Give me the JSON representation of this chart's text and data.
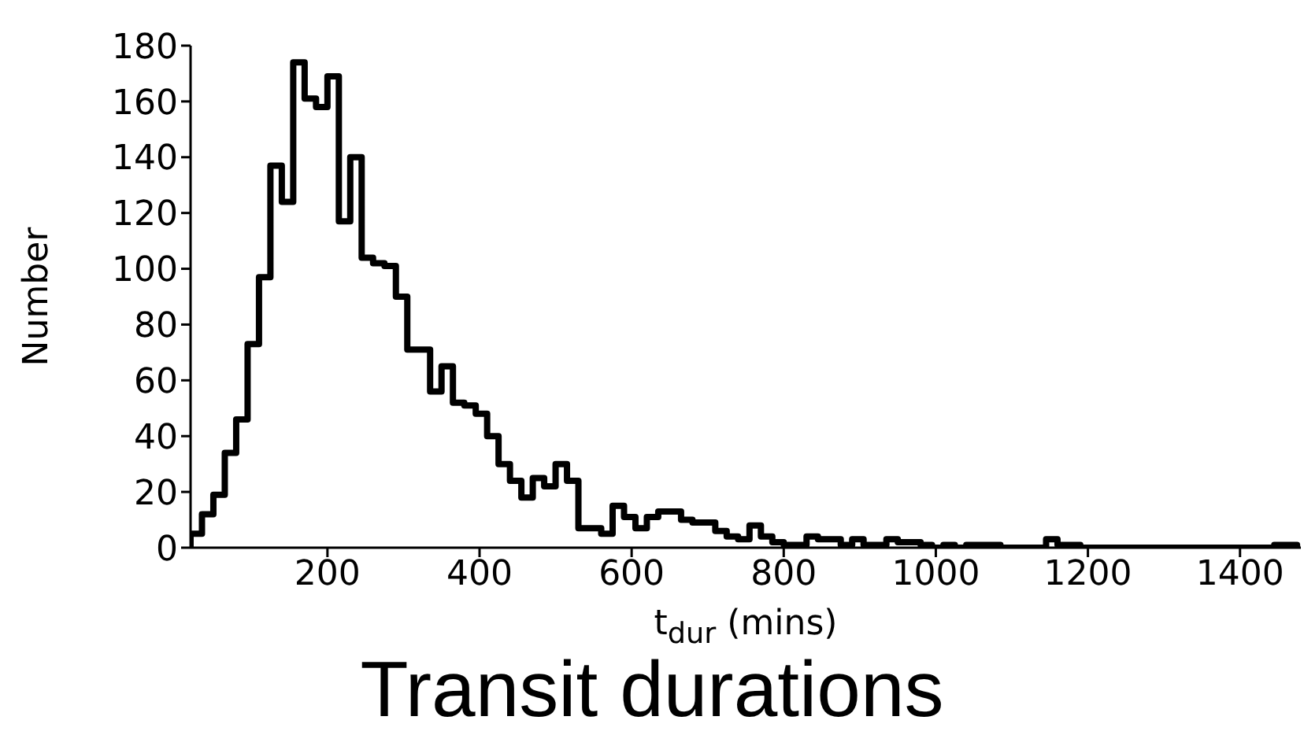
{
  "chart_data": {
    "type": "histogram",
    "title": "Transit durations",
    "xlabel": "t$_{dur}$ (mins)",
    "ylabel": "Number",
    "bins": [
      20,
      35,
      50,
      65,
      80,
      95,
      110,
      125,
      140,
      155,
      170,
      185,
      200,
      215,
      230,
      245,
      260,
      275,
      290,
      305,
      320,
      335,
      350,
      365,
      380,
      395,
      410,
      425,
      440,
      455,
      470,
      485,
      500,
      515,
      530,
      545,
      560,
      575,
      590,
      605,
      620,
      635,
      650,
      665,
      680,
      695,
      710,
      725,
      740,
      755,
      770,
      785,
      800,
      815,
      830,
      845,
      860,
      875,
      890,
      905,
      920,
      935,
      950,
      965,
      980,
      995,
      1010,
      1025,
      1040,
      1055,
      1070,
      1085,
      1100,
      1115,
      1130,
      1145,
      1160,
      1175,
      1190,
      1205,
      1220,
      1235,
      1250,
      1265,
      1280,
      1295,
      1310,
      1325,
      1340,
      1355,
      1370,
      1385,
      1400,
      1415,
      1430,
      1445,
      1460,
      1475
    ],
    "values": [
      5,
      12,
      19,
      34,
      46,
      73,
      97,
      137,
      124,
      174,
      161,
      158,
      169,
      117,
      140,
      104,
      102,
      101,
      90,
      71,
      71,
      56,
      65,
      52,
      51,
      48,
      40,
      30,
      24,
      18,
      25,
      22,
      30,
      24,
      7,
      7,
      5,
      15,
      11,
      7,
      11,
      13,
      13,
      10,
      9,
      9,
      6,
      4,
      3,
      8,
      4,
      2,
      1,
      1,
      4,
      3,
      3,
      1,
      3,
      1,
      1,
      3,
      2,
      2,
      1,
      0,
      1,
      0,
      1,
      1,
      1,
      0,
      0,
      0,
      0,
      3,
      1,
      1,
      0,
      0,
      0,
      0,
      0,
      0,
      0,
      0,
      0,
      0,
      0,
      0,
      0,
      0,
      0,
      0,
      0,
      1,
      1
    ],
    "color": "#000000",
    "xlim": [
      20,
      1480
    ],
    "xticks": [
      200,
      400,
      600,
      800,
      1000,
      1200,
      1400
    ],
    "ylim": [
      0,
      180
    ],
    "yticks": [
      0,
      20,
      40,
      60,
      80,
      100,
      120,
      140,
      160,
      180
    ],
    "grid": false
  }
}
